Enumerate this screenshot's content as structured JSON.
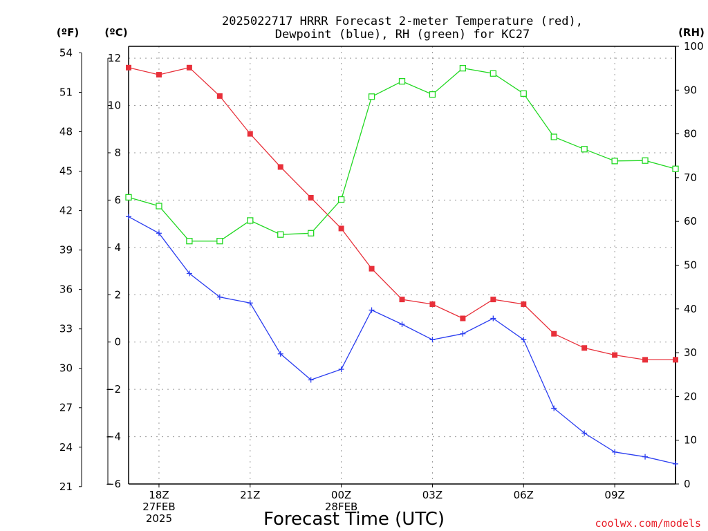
{
  "chart_data": {
    "type": "line",
    "title_lines": [
      "2025022717 HRRR Forecast 2-meter Temperature (red),",
      "Dewpoint (blue), RH (green) for KC27"
    ],
    "xlabel": "Forecast Time (UTC)",
    "unit_left_outer": "(ºF)",
    "unit_left_inner": "(ºC)",
    "unit_right": "(RH)",
    "x_hours": [
      17,
      18,
      19,
      20,
      21,
      22,
      23,
      24,
      25,
      26,
      27,
      28,
      29,
      30,
      31,
      32,
      33,
      34,
      35
    ],
    "x_ticks": [
      {
        "hour": 18,
        "lines": [
          "18Z",
          "27FEB",
          "2025"
        ]
      },
      {
        "hour": 21,
        "lines": [
          "21Z"
        ]
      },
      {
        "hour": 24,
        "lines": [
          "00Z",
          "28FEB"
        ]
      },
      {
        "hour": 27,
        "lines": [
          "03Z"
        ]
      },
      {
        "hour": 30,
        "lines": [
          "06Z"
        ]
      },
      {
        "hour": 33,
        "lines": [
          "09Z"
        ]
      }
    ],
    "celsius_axis": {
      "min": -6,
      "max": 12.5,
      "ticks": [
        12,
        10,
        8,
        6,
        4,
        2,
        0,
        -2,
        -4,
        -6
      ]
    },
    "fahrenheit_ticks": [
      54,
      51,
      48,
      45,
      42,
      39,
      36,
      33,
      30,
      27,
      24,
      21
    ],
    "rh_axis": {
      "min": 0,
      "max": 100,
      "ticks": [
        100,
        90,
        80,
        70,
        60,
        50,
        40,
        30,
        20,
        10,
        0
      ]
    },
    "series": [
      {
        "name": "Temperature",
        "axis": "celsius",
        "color": "#e8303a",
        "marker": "filled-square",
        "values": [
          11.6,
          11.3,
          11.6,
          10.4,
          8.8,
          7.4,
          6.1,
          4.8,
          3.1,
          1.8,
          1.6,
          1.0,
          1.8,
          1.6,
          0.35,
          -0.25,
          -0.55,
          -0.75,
          -0.75
        ]
      },
      {
        "name": "Dewpoint",
        "axis": "celsius",
        "color": "#2b3ef0",
        "marker": "plus",
        "values": [
          5.3,
          4.6,
          2.9,
          1.9,
          1.65,
          -0.5,
          -1.6,
          -1.15,
          1.35,
          0.75,
          0.1,
          0.35,
          1.0,
          0.1,
          -2.8,
          -3.85,
          -4.65,
          -4.85,
          -5.15
        ]
      },
      {
        "name": "RH",
        "axis": "rh",
        "color": "#22d822",
        "marker": "open-square",
        "values": [
          65.5,
          63.5,
          55.5,
          55.5,
          60.2,
          57.0,
          57.3,
          65.0,
          88.5,
          92.0,
          89.0,
          95.0,
          93.8,
          89.2,
          79.3,
          76.5,
          73.8,
          73.9,
          72.0
        ]
      }
    ],
    "grid": true,
    "legend": "none"
  },
  "credit": "coolwx.com/models"
}
